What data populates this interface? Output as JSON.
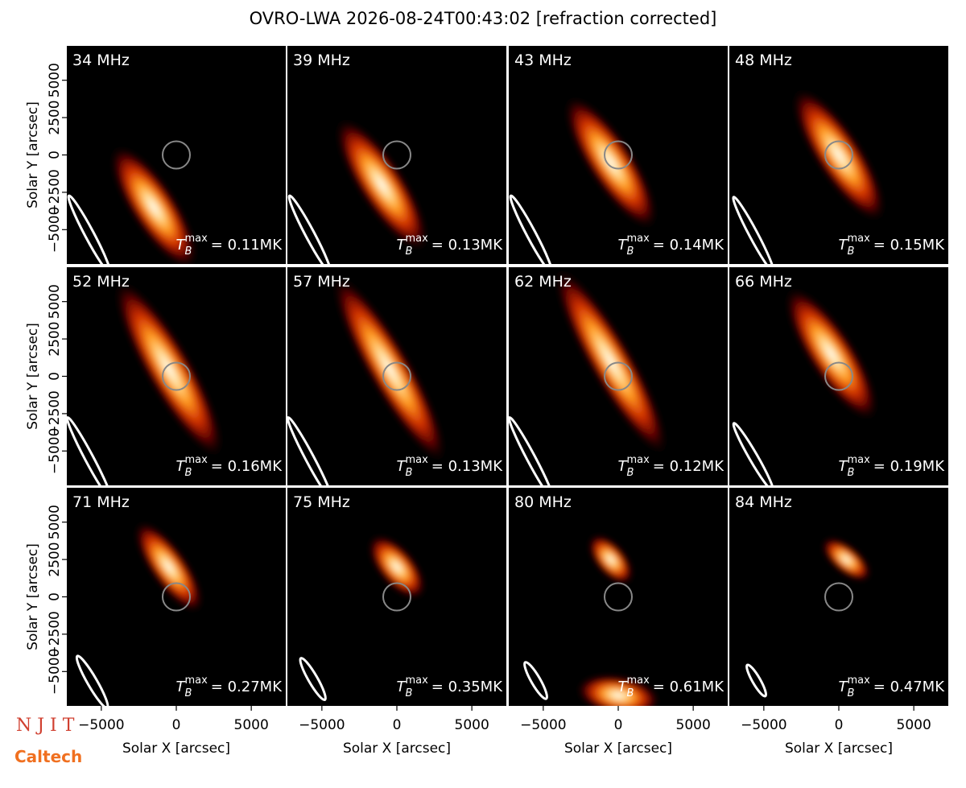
{
  "chart_data": {
    "type": "image",
    "title": "OVRO-LWA 2026-08-24T00:43:02 [refraction corrected]",
    "xlabel": "Solar X [arcsec]",
    "ylabel": "Solar Y [arcsec]",
    "xlim": [
      -7300,
      7300
    ],
    "ylim": [
      -7300,
      7300
    ],
    "xticks": [
      {
        "value": -5000,
        "label": "−5000"
      },
      0,
      5000
    ],
    "yticks": [
      {
        "value": -5000,
        "label": "−5000"
      },
      {
        "value": -2500,
        "label": "−2500"
      },
      0,
      2500,
      5000
    ],
    "tmax_symbol": {
      "base": "T",
      "sub": "B",
      "sup": "max"
    },
    "panels": [
      {
        "label": "34 MHz",
        "tmax": "= 0.11MK"
      },
      {
        "label": "39 MHz",
        "tmax": "= 0.13MK"
      },
      {
        "label": "43 MHz",
        "tmax": "= 0.14MK"
      },
      {
        "label": "48 MHz",
        "tmax": "= 0.15MK"
      },
      {
        "label": "52 MHz",
        "tmax": "= 0.16MK"
      },
      {
        "label": "57 MHz",
        "tmax": "= 0.13MK"
      },
      {
        "label": "62 MHz",
        "tmax": "= 0.12MK"
      },
      {
        "label": "66 MHz",
        "tmax": "= 0.19MK"
      },
      {
        "label": "71 MHz",
        "tmax": "= 0.27MK"
      },
      {
        "label": "75 MHz",
        "tmax": "= 0.35MK"
      },
      {
        "label": "80 MHz",
        "tmax": "= 0.61MK"
      },
      {
        "label": "84 MHz",
        "tmax": "= 0.47MK"
      }
    ],
    "logos": [
      "N J I T",
      "Caltech"
    ]
  }
}
